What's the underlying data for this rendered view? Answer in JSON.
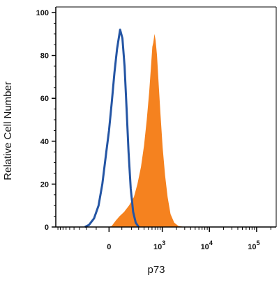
{
  "chart_data": {
    "type": "area",
    "title": "",
    "xlabel": "p73",
    "ylabel": "Relative Cell Number",
    "x_scale": "biexponential",
    "ylim": [
      0,
      100
    ],
    "yticks": [
      "0",
      "20",
      "40",
      "60",
      "80",
      "100"
    ],
    "xticks": [
      {
        "value": 0,
        "base": "0",
        "exp": ""
      },
      {
        "value": 1000,
        "base": "10",
        "exp": "3"
      },
      {
        "value": 10000,
        "base": "10",
        "exp": "4"
      },
      {
        "value": 100000,
        "base": "10",
        "exp": "5"
      }
    ],
    "series": [
      {
        "style": "filled",
        "color": "#f5821f",
        "points": [
          [
            0,
            0
          ],
          [
            20,
            0.5
          ],
          [
            50,
            3
          ],
          [
            80,
            5
          ],
          [
            120,
            7
          ],
          [
            170,
            10
          ],
          [
            230,
            14
          ],
          [
            280,
            20
          ],
          [
            340,
            28
          ],
          [
            400,
            38
          ],
          [
            460,
            50
          ],
          [
            520,
            63
          ],
          [
            570,
            75
          ],
          [
            610,
            84
          ],
          [
            640,
            86
          ],
          [
            680,
            90
          ],
          [
            720,
            87
          ],
          [
            770,
            80
          ],
          [
            840,
            66
          ],
          [
            920,
            52
          ],
          [
            1020,
            37
          ],
          [
            1150,
            24
          ],
          [
            1300,
            14
          ],
          [
            1500,
            6
          ],
          [
            1800,
            2
          ],
          [
            2200,
            0.5
          ],
          [
            3000,
            0
          ]
        ]
      },
      {
        "style": "line",
        "color": "#2455a4",
        "points": [
          [
            -220,
            0
          ],
          [
            -170,
            1
          ],
          [
            -120,
            4
          ],
          [
            -80,
            10
          ],
          [
            -50,
            20
          ],
          [
            -20,
            35
          ],
          [
            0,
            45
          ],
          [
            20,
            58
          ],
          [
            40,
            72
          ],
          [
            60,
            83
          ],
          [
            85,
            92
          ],
          [
            105,
            88
          ],
          [
            125,
            75
          ],
          [
            145,
            55
          ],
          [
            165,
            35
          ],
          [
            190,
            18
          ],
          [
            220,
            7
          ],
          [
            255,
            2
          ],
          [
            300,
            0
          ]
        ]
      }
    ]
  }
}
